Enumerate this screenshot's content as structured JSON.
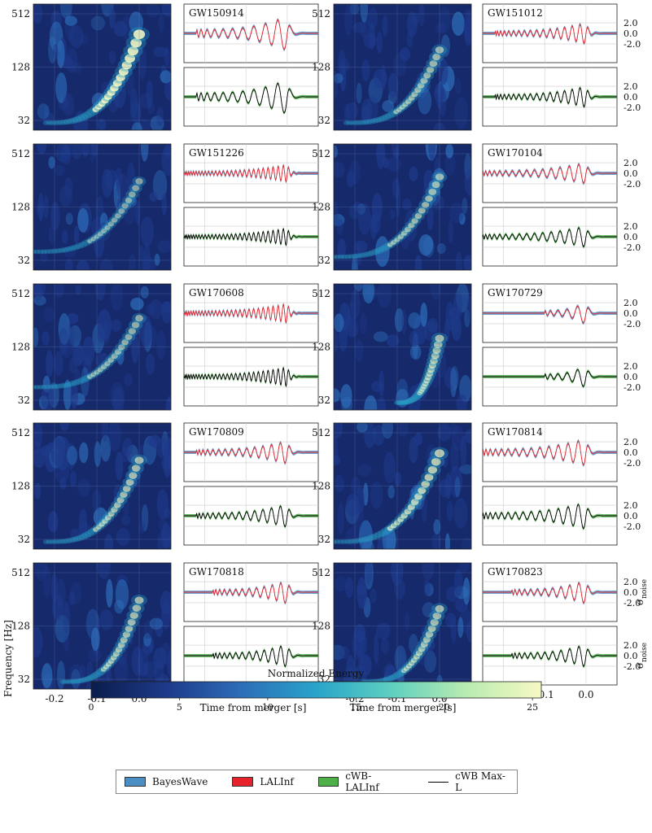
{
  "chart_data": {
    "type": "heatmap",
    "description_free": true,
    "spectrogram_axis": {
      "ylabel": "Frequency [Hz]",
      "yticks": [
        "512",
        "128",
        "32"
      ],
      "xticks": [
        "-0.2",
        "-0.1",
        "0.0"
      ],
      "xrange": [
        -0.25,
        0.075
      ]
    },
    "waveform_axis": {
      "xlabel": "Time from merger [s]",
      "ylabel": "σnoise",
      "ylabel_main": "σ",
      "ylabel_sub": "noise",
      "yticks": [
        "2.0",
        "0.0",
        "-2.0"
      ],
      "xticks": [
        "-0.2",
        "-0.1",
        "0.0"
      ],
      "xrange": [
        -0.25,
        0.075
      ]
    },
    "events": [
      {
        "name": "GW150914",
        "f0": 30,
        "tail": 0.22,
        "amp": 0.9,
        "cycles": 10,
        "fmax": 300
      },
      {
        "name": "GW151012",
        "f0": 30,
        "tail": 0.22,
        "amp": 0.55,
        "cycles": 16,
        "fmax": 200
      },
      {
        "name": "GW151226",
        "f0": 40,
        "tail": 0.25,
        "amp": 0.45,
        "cycles": 28,
        "fmax": 250
      },
      {
        "name": "GW170104",
        "f0": 35,
        "tail": 0.25,
        "amp": 0.55,
        "cycles": 15,
        "fmax": 280
      },
      {
        "name": "GW170608",
        "f0": 45,
        "tail": 0.25,
        "amp": 0.5,
        "cycles": 28,
        "fmax": 270
      },
      {
        "name": "GW170729",
        "f0": 30,
        "tail": 0.1,
        "amp": 0.6,
        "cycles": 5,
        "fmax": 160
      },
      {
        "name": "GW170809",
        "f0": 30,
        "tail": 0.22,
        "amp": 0.6,
        "cycles": 14,
        "fmax": 250
      },
      {
        "name": "GW170814",
        "f0": 30,
        "tail": 0.25,
        "amp": 0.7,
        "cycles": 14,
        "fmax": 300
      },
      {
        "name": "GW170818",
        "f0": 30,
        "tail": 0.18,
        "amp": 0.6,
        "cycles": 12,
        "fmax": 250
      },
      {
        "name": "GW170823",
        "f0": 30,
        "tail": 0.18,
        "amp": 0.6,
        "cycles": 11,
        "fmax": 200
      }
    ],
    "colorbar": {
      "title": "Normalized Energy",
      "ticks": [
        "0",
        "5",
        "10",
        "15",
        "20",
        "25"
      ],
      "range": [
        0,
        25.5
      ],
      "colors": [
        "#0b1d4d",
        "#1e3a8a",
        "#2c6cb8",
        "#29a4c9",
        "#5fd0c0",
        "#b8ebb0",
        "#f7f9c4"
      ]
    },
    "legend": [
      {
        "label": "BayesWave",
        "color": "#4a8ec4",
        "kind": "band"
      },
      {
        "label": "LALInf",
        "color": "#e8222a",
        "kind": "band"
      },
      {
        "label": "cWB-LALInf",
        "color": "#4fb04a",
        "kind": "band"
      },
      {
        "label": "cWB Max-L",
        "color": "#000000",
        "kind": "line"
      }
    ]
  }
}
